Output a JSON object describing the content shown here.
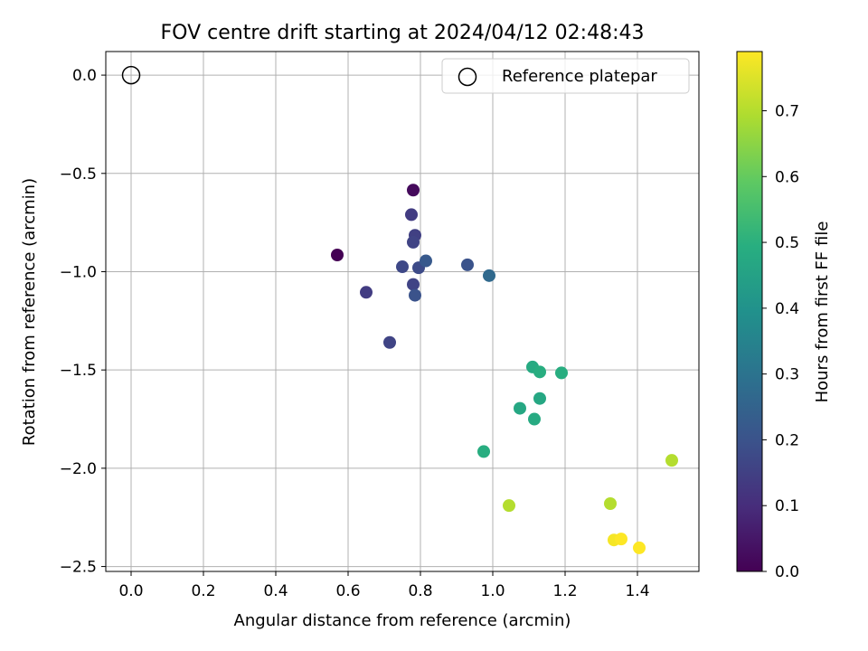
{
  "chart_data": {
    "type": "scatter",
    "title": "FOV centre drift starting at 2024/04/12 02:48:43",
    "xlabel": "Angular distance from reference (arcmin)",
    "ylabel": "Rotation from reference (arcmin)",
    "xlim": [
      -0.07,
      1.57
    ],
    "ylim": [
      -2.525,
      0.12
    ],
    "grid": true,
    "x_ticks": [
      "0.0",
      "0.2",
      "0.4",
      "0.6",
      "0.8",
      "1.0",
      "1.2",
      "1.4"
    ],
    "y_ticks": [
      "0.0",
      "−0.5",
      "−1.0",
      "−1.5",
      "−2.0",
      "−2.5"
    ],
    "legend": {
      "position": "top-right",
      "entries": [
        "Reference platepar"
      ]
    },
    "reference_point": {
      "x": 0.0,
      "y": 0.0
    },
    "colorbar": {
      "label": "Hours from first FF file",
      "colormap": "viridis",
      "range": [
        0.0,
        0.79
      ],
      "ticks": [
        "0.0",
        "0.1",
        "0.2",
        "0.3",
        "0.4",
        "0.5",
        "0.6",
        "0.7"
      ]
    },
    "points": [
      {
        "x": 0.57,
        "y": -0.915,
        "hours": 0.0
      },
      {
        "x": 0.78,
        "y": -0.585,
        "hours": 0.02
      },
      {
        "x": 0.775,
        "y": -0.71,
        "hours": 0.14
      },
      {
        "x": 0.785,
        "y": -0.815,
        "hours": 0.15
      },
      {
        "x": 0.78,
        "y": -0.85,
        "hours": 0.16
      },
      {
        "x": 0.75,
        "y": -0.975,
        "hours": 0.17
      },
      {
        "x": 0.795,
        "y": -0.98,
        "hours": 0.18
      },
      {
        "x": 0.815,
        "y": -0.945,
        "hours": 0.22
      },
      {
        "x": 0.93,
        "y": -0.965,
        "hours": 0.2
      },
      {
        "x": 0.99,
        "y": -1.02,
        "hours": 0.27
      },
      {
        "x": 0.78,
        "y": -1.065,
        "hours": 0.16
      },
      {
        "x": 0.785,
        "y": -1.12,
        "hours": 0.2
      },
      {
        "x": 0.65,
        "y": -1.105,
        "hours": 0.14
      },
      {
        "x": 0.715,
        "y": -1.36,
        "hours": 0.16
      },
      {
        "x": 1.11,
        "y": -1.485,
        "hours": 0.48
      },
      {
        "x": 1.13,
        "y": -1.51,
        "hours": 0.49
      },
      {
        "x": 1.19,
        "y": -1.515,
        "hours": 0.49
      },
      {
        "x": 1.13,
        "y": -1.645,
        "hours": 0.47
      },
      {
        "x": 1.075,
        "y": -1.695,
        "hours": 0.47
      },
      {
        "x": 1.115,
        "y": -1.75,
        "hours": 0.48
      },
      {
        "x": 0.975,
        "y": -1.915,
        "hours": 0.49
      },
      {
        "x": 1.045,
        "y": -2.19,
        "hours": 0.7
      },
      {
        "x": 1.325,
        "y": -2.18,
        "hours": 0.7
      },
      {
        "x": 1.495,
        "y": -1.96,
        "hours": 0.7
      },
      {
        "x": 1.335,
        "y": -2.365,
        "hours": 0.78
      },
      {
        "x": 1.355,
        "y": -2.36,
        "hours": 0.79
      },
      {
        "x": 1.405,
        "y": -2.405,
        "hours": 0.79
      }
    ]
  }
}
